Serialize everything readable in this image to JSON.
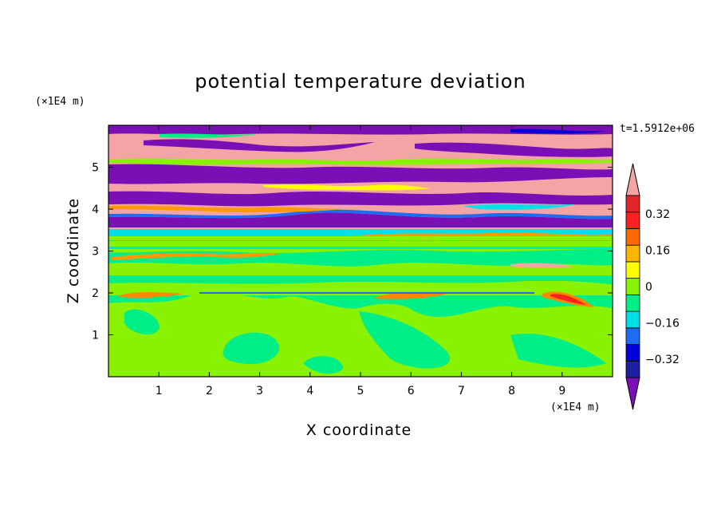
{
  "chart_data": {
    "type": "heatmap",
    "title": "potential temperature deviation",
    "xlabel": "X coordinate",
    "ylabel": "Z coordinate",
    "x_unit_label": "(×1E4 m)",
    "z_unit_label": "(×1E4 m)",
    "timestamp": "t=1.5912e+06",
    "xlim": [
      0,
      10
    ],
    "zlim": [
      0,
      6
    ],
    "x_ticks": [
      1,
      2,
      3,
      4,
      5,
      6,
      7,
      8,
      9
    ],
    "x_tick_labels": [
      "1",
      "2",
      "3",
      "4",
      "5",
      "6",
      "7",
      "8",
      "9"
    ],
    "z_ticks": [
      1,
      2,
      3,
      4,
      5
    ],
    "z_tick_labels": [
      "1",
      "2",
      "3",
      "4",
      "5"
    ],
    "colorbar": {
      "levels": [
        -0.48,
        -0.4,
        -0.32,
        -0.24,
        -0.16,
        -0.08,
        0,
        0.08,
        0.16,
        0.24,
        0.32,
        0.4,
        0.48
      ],
      "colors": [
        "#7a0fb5",
        "#1f1fa0",
        "#0000d8",
        "#1e6cf2",
        "#00e0e6",
        "#00ee88",
        "#88f200",
        "#ffff00",
        "#ffb400",
        "#ff6a00",
        "#ff2020",
        "#e0262a",
        "#f4a4a4"
      ],
      "tick_values": [
        -0.32,
        -0.16,
        0,
        0.16,
        0.32
      ],
      "tick_labels": [
        "−0.32",
        "−0.16",
        "0",
        "0.16",
        "0.32"
      ]
    },
    "bands": [
      {
        "z_min": 0.0,
        "z_max": 2.0,
        "dominant_value": -0.04,
        "secondary_value": 0.04
      },
      {
        "z_min": 2.0,
        "z_max": 2.1,
        "dominant_value": 0.36
      },
      {
        "z_min": 2.1,
        "z_max": 3.3,
        "dominant_value": -0.04,
        "secondary_value": 0.04
      },
      {
        "z_min": 3.3,
        "z_max": 3.6,
        "dominant_value": -0.12
      },
      {
        "z_min": 3.6,
        "z_max": 4.4,
        "dominant_value": 0.48,
        "secondary_value": -0.48
      },
      {
        "z_min": 4.4,
        "z_max": 6.0,
        "dominant_value": 0.48,
        "secondary_value": -0.48
      }
    ]
  }
}
